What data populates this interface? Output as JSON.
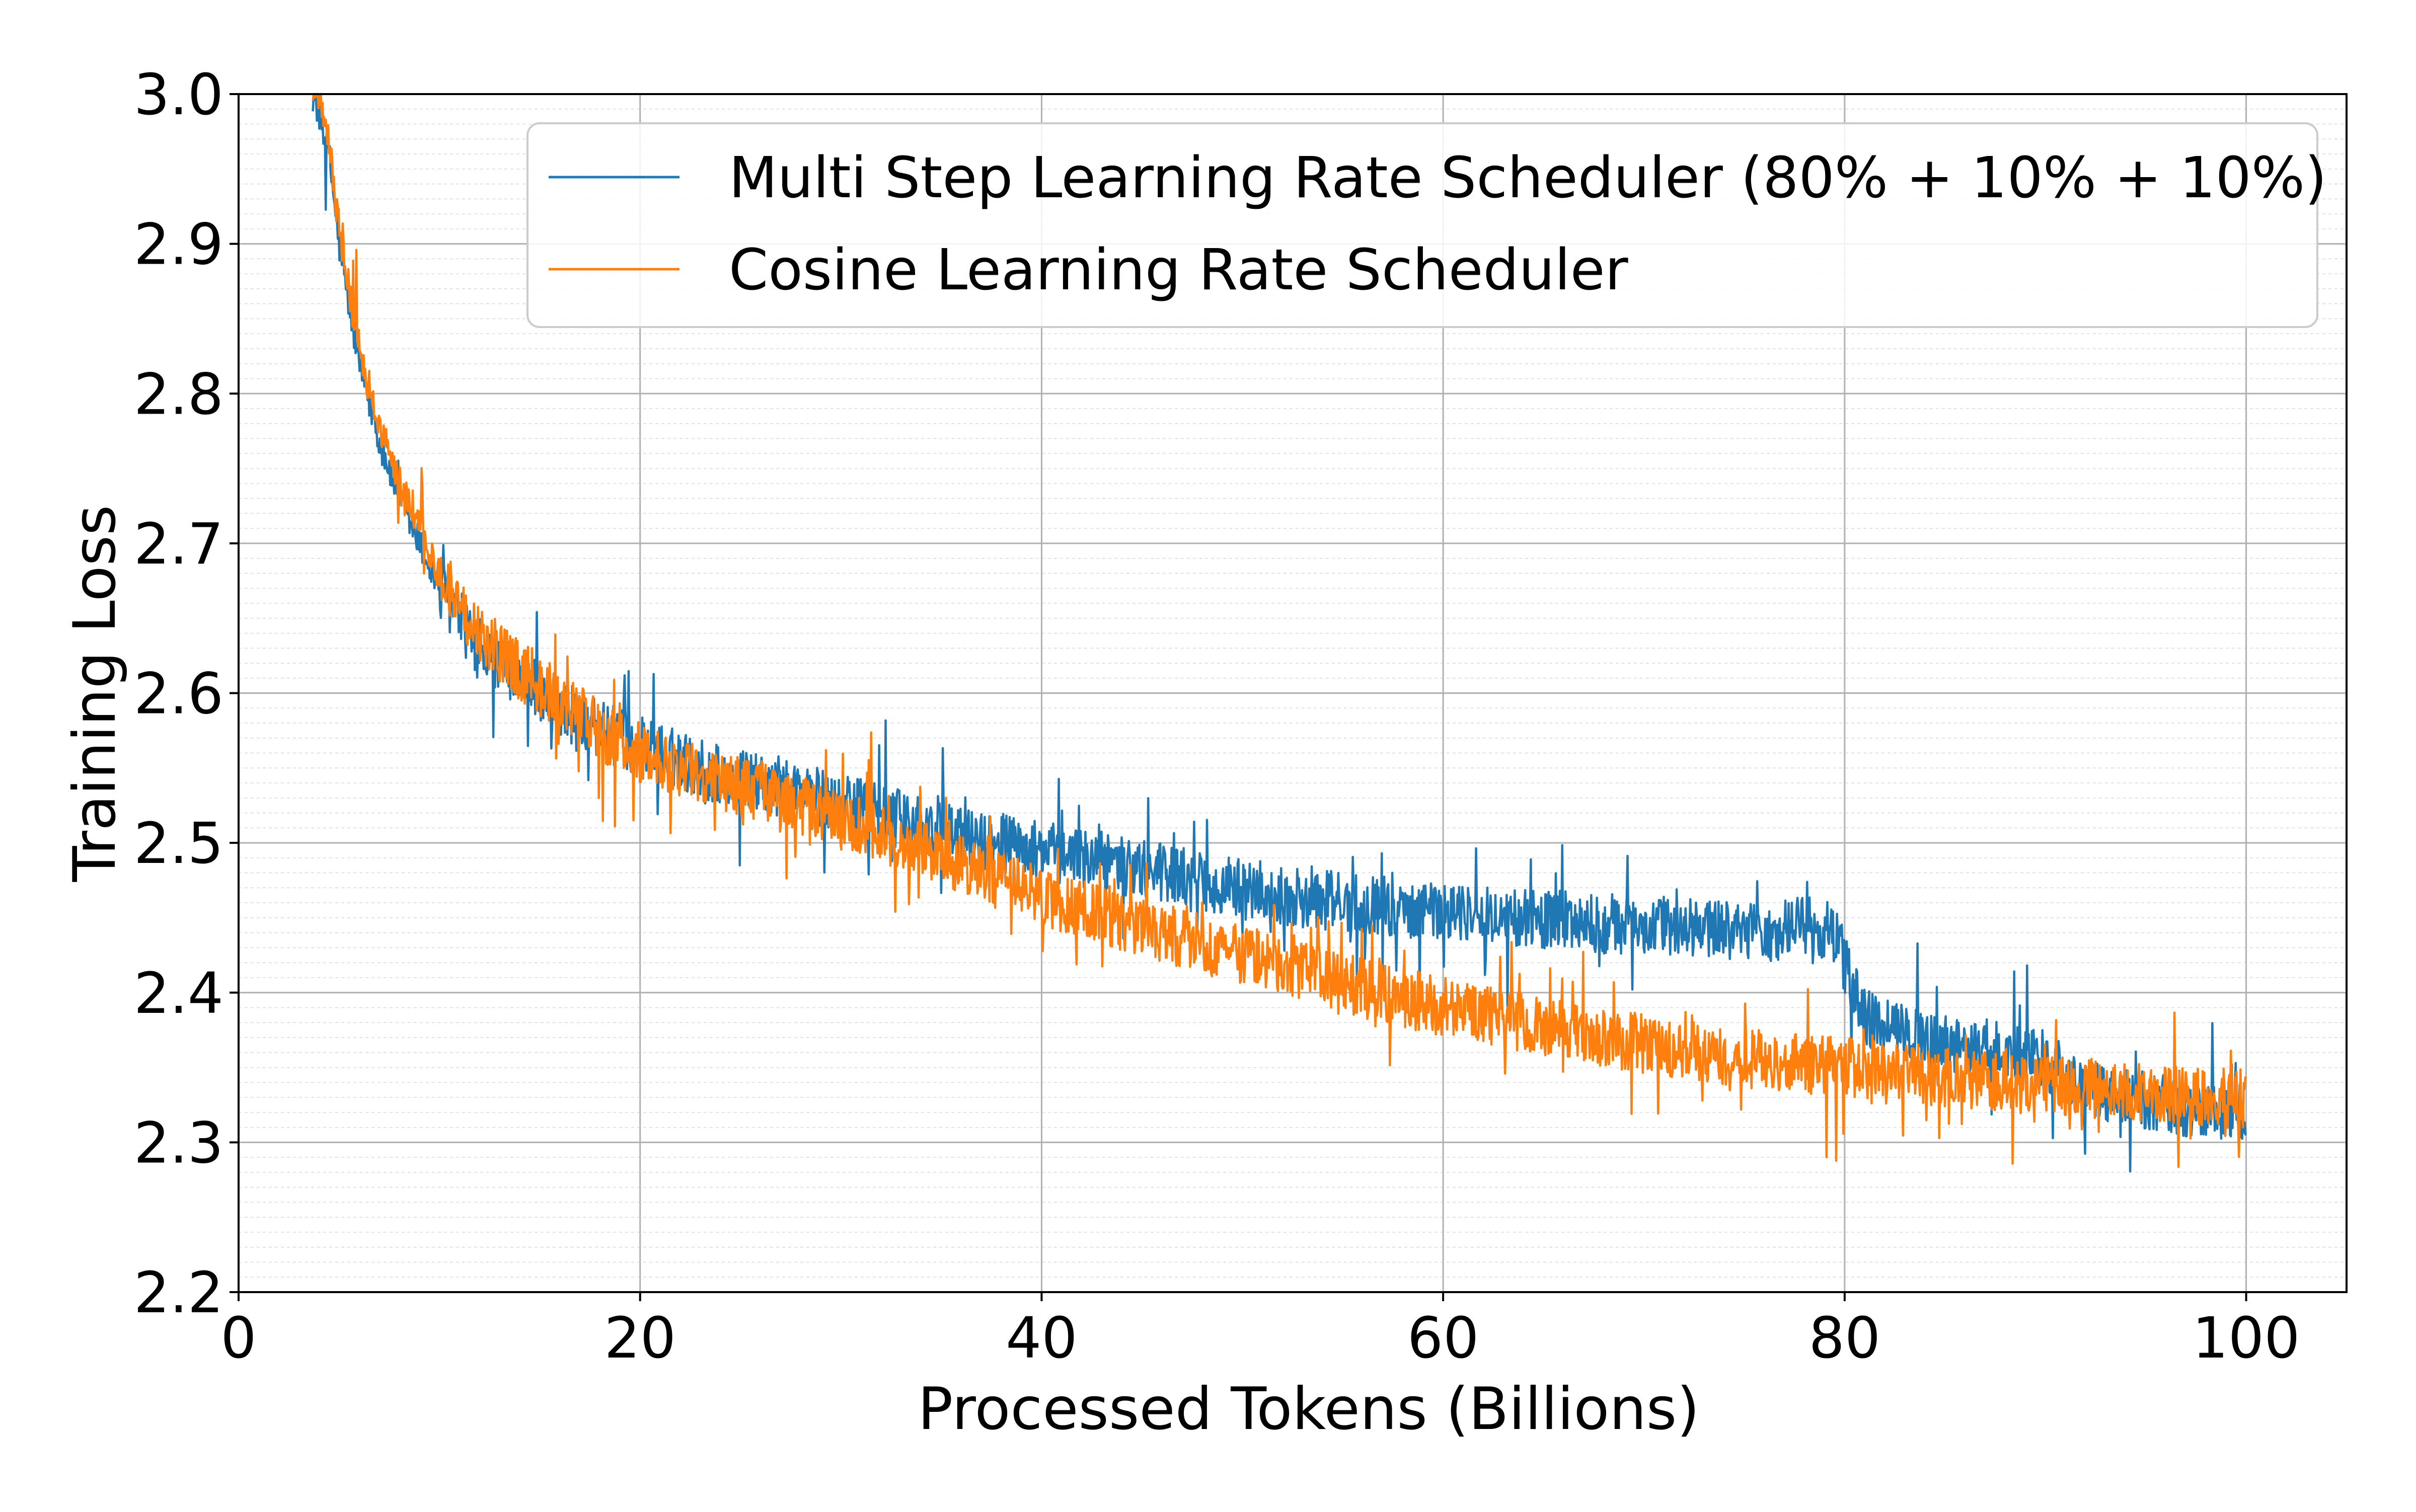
{
  "chart_data": {
    "type": "line",
    "xlabel": "Processed Tokens (Billions)",
    "ylabel": "Training Loss",
    "xlim": [
      0,
      105
    ],
    "ylim": [
      2.2,
      3.0
    ],
    "x_ticks": [
      0,
      20,
      40,
      60,
      80,
      100
    ],
    "x_tick_labels": [
      "0",
      "20",
      "40",
      "60",
      "80",
      "100"
    ],
    "y_ticks": [
      2.2,
      2.3,
      2.4,
      2.5,
      2.6,
      2.7,
      2.8,
      2.9,
      3.0
    ],
    "y_tick_labels": [
      "2.2",
      "2.3",
      "2.4",
      "2.5",
      "2.6",
      "2.7",
      "2.8",
      "2.9",
      "3.0"
    ],
    "grid": true,
    "legend_position": "top-right",
    "series": [
      {
        "name": "Multi Step Learning Rate Scheduler (80% + 10% + 10%)",
        "color": "#1f77b4",
        "x": [
          3.7,
          4,
          4.5,
          5,
          5.5,
          6,
          7,
          8,
          9,
          10,
          12,
          14,
          16,
          18,
          20,
          22,
          24,
          26,
          28,
          30,
          32,
          34,
          36,
          38,
          40,
          42,
          44,
          46,
          48,
          50,
          52,
          54,
          56,
          58,
          60,
          62,
          64,
          66,
          68,
          70,
          72,
          74,
          76,
          78,
          79.5,
          80,
          80.5,
          81,
          82,
          84,
          86,
          88,
          90,
          90.5,
          91,
          92,
          94,
          96,
          98,
          100
        ],
        "y": [
          3.0,
          2.99,
          2.96,
          2.9,
          2.86,
          2.82,
          2.77,
          2.73,
          2.7,
          2.67,
          2.63,
          2.61,
          2.59,
          2.575,
          2.565,
          2.555,
          2.545,
          2.54,
          2.535,
          2.525,
          2.52,
          2.51,
          2.505,
          2.5,
          2.495,
          2.49,
          2.485,
          2.48,
          2.475,
          2.47,
          2.465,
          2.462,
          2.46,
          2.457,
          2.455,
          2.452,
          2.45,
          2.448,
          2.446,
          2.445,
          2.443,
          2.442,
          2.44,
          2.445,
          2.44,
          2.42,
          2.4,
          2.385,
          2.375,
          2.37,
          2.365,
          2.36,
          2.355,
          2.345,
          2.34,
          2.335,
          2.33,
          2.325,
          2.322,
          2.318
        ]
      },
      {
        "name": "Cosine Learning Rate Scheduler",
        "color": "#ff7f0e",
        "x": [
          3.7,
          4,
          4.5,
          5,
          5.5,
          6,
          7,
          8,
          9,
          10,
          12,
          14,
          16,
          18,
          20,
          22,
          24,
          26,
          28,
          30,
          32,
          34,
          36,
          38,
          40,
          42,
          44,
          46,
          48,
          50,
          52,
          54,
          56,
          58,
          60,
          62,
          64,
          66,
          68,
          70,
          72,
          74,
          76,
          78,
          80,
          82,
          84,
          86,
          88,
          90,
          92,
          94,
          96,
          98,
          100
        ],
        "y": [
          3.0,
          3.0,
          2.97,
          2.91,
          2.87,
          2.83,
          2.78,
          2.74,
          2.71,
          2.68,
          2.64,
          2.615,
          2.595,
          2.575,
          2.56,
          2.55,
          2.54,
          2.535,
          2.525,
          2.515,
          2.505,
          2.495,
          2.485,
          2.475,
          2.465,
          2.455,
          2.447,
          2.44,
          2.432,
          2.425,
          2.418,
          2.41,
          2.403,
          2.397,
          2.39,
          2.385,
          2.38,
          2.375,
          2.37,
          2.366,
          2.362,
          2.358,
          2.355,
          2.352,
          2.35,
          2.347,
          2.345,
          2.342,
          2.34,
          2.338,
          2.336,
          2.334,
          2.332,
          2.33,
          2.329
        ]
      }
    ]
  }
}
